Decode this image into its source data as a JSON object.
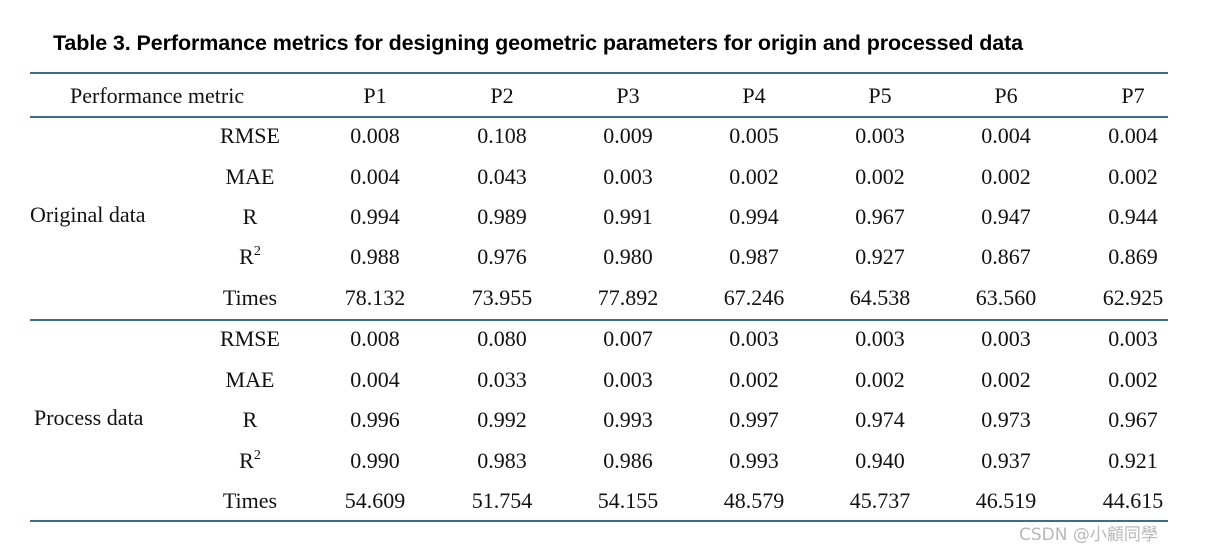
{
  "title": "Table  3.  Performance metrics for designing geometric parameters for origin and processed data",
  "header": {
    "metric_label": "Performance metric",
    "columns": [
      "P1",
      "P2",
      "P3",
      "P4",
      "P5",
      "P6",
      "P7"
    ]
  },
  "groups": [
    {
      "name": "Original data",
      "rows": [
        {
          "metric": "RMSE",
          "sup": "",
          "values": [
            "0.008",
            "0.108",
            "0.009",
            "0.005",
            "0.003",
            "0.004",
            "0.004"
          ]
        },
        {
          "metric": "MAE",
          "sup": "",
          "values": [
            "0.004",
            "0.043",
            "0.003",
            "0.002",
            "0.002",
            "0.002",
            "0.002"
          ]
        },
        {
          "metric": "R",
          "sup": "",
          "values": [
            "0.994",
            "0.989",
            "0.991",
            "0.994",
            "0.967",
            "0.947",
            "0.944"
          ]
        },
        {
          "metric": "R",
          "sup": "2",
          "values": [
            "0.988",
            "0.976",
            "0.980",
            "0.987",
            "0.927",
            "0.867",
            "0.869"
          ]
        },
        {
          "metric": "Times",
          "sup": "",
          "values": [
            "78.132",
            "73.955",
            "77.892",
            "67.246",
            "64.538",
            "63.560",
            "62.925"
          ]
        }
      ]
    },
    {
      "name": "Process data",
      "rows": [
        {
          "metric": "RMSE",
          "sup": "",
          "values": [
            "0.008",
            "0.080",
            "0.007",
            "0.003",
            "0.003",
            "0.003",
            "0.003"
          ]
        },
        {
          "metric": "MAE",
          "sup": "",
          "values": [
            "0.004",
            "0.033",
            "0.003",
            "0.002",
            "0.002",
            "0.002",
            "0.002"
          ]
        },
        {
          "metric": "R",
          "sup": "",
          "values": [
            "0.996",
            "0.992",
            "0.993",
            "0.997",
            "0.974",
            "0.973",
            "0.967"
          ]
        },
        {
          "metric": "R",
          "sup": "2",
          "values": [
            "0.990",
            "0.983",
            "0.986",
            "0.993",
            "0.940",
            "0.937",
            "0.921"
          ]
        },
        {
          "metric": "Times",
          "sup": "",
          "values": [
            "54.609",
            "51.754",
            "54.155",
            "48.579",
            "45.737",
            "46.519",
            "44.615"
          ]
        }
      ]
    }
  ],
  "watermark": "CSDN @小顧同學",
  "colors": {
    "rule": "#3a6f84",
    "watermark": "#b9b9b9"
  }
}
